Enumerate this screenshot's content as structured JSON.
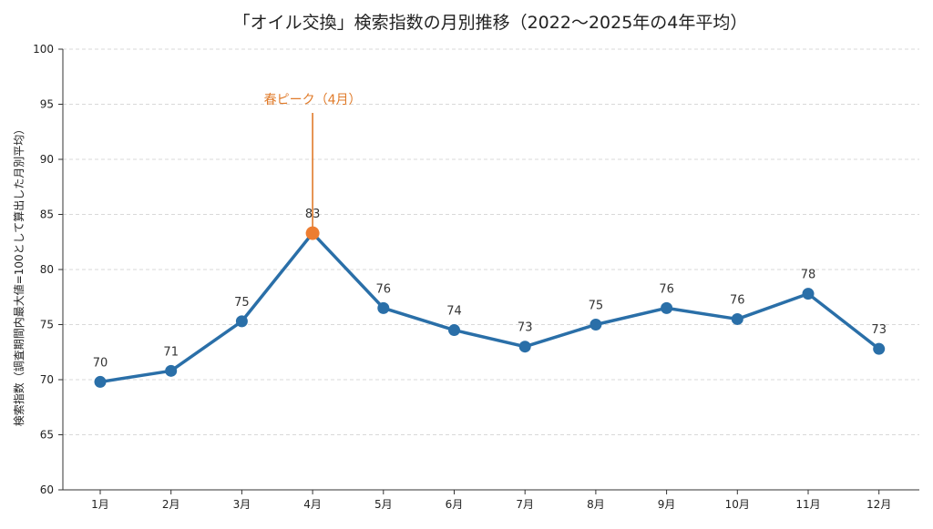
{
  "chart_data": {
    "type": "line",
    "title": "「オイル交換」検索指数の月別推移（2022〜2025年の4年平均）",
    "xlabel": "",
    "ylabel": "検索指数（調査期間内最大値=100として算出した月別平均）",
    "categories": [
      "1月",
      "2月",
      "3月",
      "4月",
      "5月",
      "6月",
      "7月",
      "8月",
      "9月",
      "10月",
      "11月",
      "12月"
    ],
    "series": [
      {
        "values": [
          69.8,
          70.8,
          75.3,
          83.3,
          76.5,
          74.5,
          73.0,
          75.0,
          76.5,
          75.5,
          77.8,
          72.8
        ],
        "labels": [
          "70",
          "71",
          "75",
          "83",
          "76",
          "74",
          "73",
          "75",
          "76",
          "76",
          "78",
          "73"
        ],
        "color": "#2a6fa8"
      }
    ],
    "ylim": [
      60,
      100
    ],
    "yticks": [
      60,
      65,
      70,
      75,
      80,
      85,
      90,
      95,
      100
    ],
    "grid": "horizontal-dashed",
    "highlight": {
      "index": 3,
      "color": "#ed7d31"
    },
    "annotation": {
      "text": "春ピーク（4月）",
      "index": 3,
      "color": "#e07b2a"
    }
  }
}
